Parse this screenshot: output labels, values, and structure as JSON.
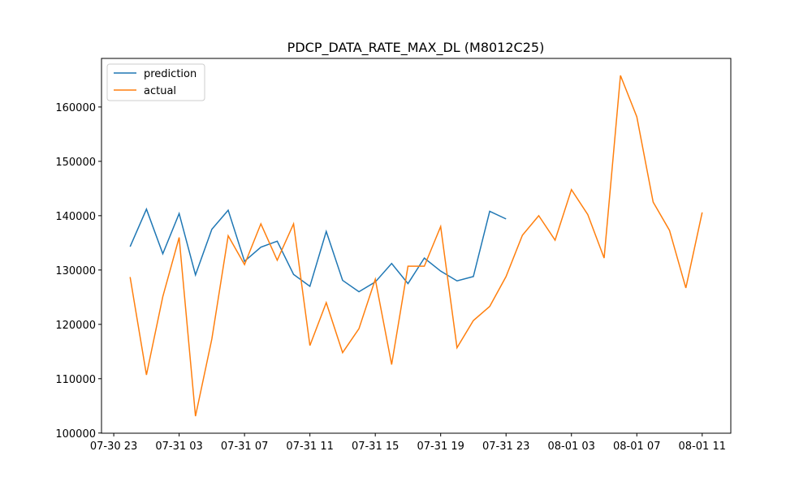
{
  "chart_data": {
    "type": "line",
    "title": "PDCP_DATA_RATE_MAX_DL (M8012C25)",
    "x": [
      "07-31 00",
      "07-31 01",
      "07-31 02",
      "07-31 03",
      "07-31 04",
      "07-31 05",
      "07-31 06",
      "07-31 07",
      "07-31 08",
      "07-31 09",
      "07-31 10",
      "07-31 11",
      "07-31 12",
      "07-31 13",
      "07-31 14",
      "07-31 15",
      "07-31 16",
      "07-31 17",
      "07-31 18",
      "07-31 19",
      "07-31 20",
      "07-31 21",
      "07-31 22",
      "07-31 23",
      "08-01 00",
      "08-01 01",
      "08-01 02",
      "08-01 03",
      "08-01 04",
      "08-01 05",
      "08-01 06",
      "08-01 07",
      "08-01 08",
      "08-01 09",
      "08-01 10",
      "08-01 11"
    ],
    "series": [
      {
        "name": "prediction",
        "color": "#1f77b4",
        "values": [
          134300,
          141200,
          133000,
          140400,
          129100,
          137500,
          141000,
          131600,
          134200,
          135300,
          129200,
          127000,
          137100,
          128100,
          126000,
          127800,
          131200,
          127500,
          132200,
          129800,
          128000,
          128800,
          140800,
          139400,
          null,
          null,
          null,
          null,
          null,
          null,
          null,
          null,
          null,
          null,
          null,
          null
        ]
      },
      {
        "name": "actual",
        "color": "#ff7f0e",
        "values": [
          128700,
          110700,
          125100,
          136000,
          103100,
          117300,
          136300,
          131000,
          138500,
          131800,
          138500,
          116100,
          124000,
          114800,
          119200,
          128300,
          112600,
          130700,
          130700,
          138000,
          115700,
          120700,
          123300,
          128800,
          136400,
          140000,
          135500,
          144800,
          140200,
          132200,
          165800,
          158200,
          142500,
          137300,
          126700,
          140600
        ]
      }
    ],
    "xlim": [
      "07-30 22:15",
      "08-01 12:45"
    ],
    "xticks": [
      "07-30 23",
      "07-31 03",
      "07-31 07",
      "07-31 11",
      "07-31 15",
      "07-31 19",
      "07-31 23",
      "08-01 03",
      "08-01 07",
      "08-01 11"
    ],
    "ylim": [
      99970,
      168940
    ],
    "yticks": [
      100000,
      110000,
      120000,
      130000,
      140000,
      150000,
      160000
    ],
    "grid": false,
    "legend": "upper left"
  }
}
